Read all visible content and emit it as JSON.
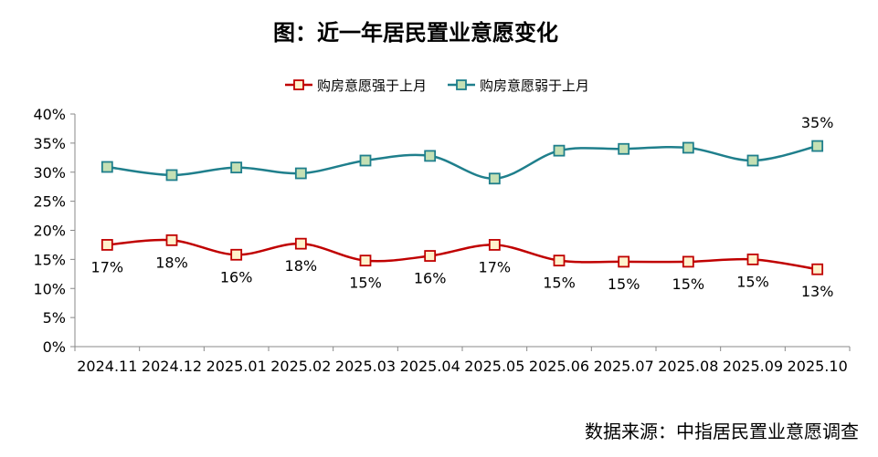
{
  "chart_data": {
    "type": "line",
    "title": "图：近一年居民置业意愿变化",
    "categories": [
      "2024.11",
      "2024.12",
      "2025.01",
      "2025.02",
      "2025.03",
      "2025.04",
      "2025.05",
      "2025.06",
      "2025.07",
      "2025.08",
      "2025.09",
      "2025.10"
    ],
    "yticks": [
      "0%",
      "5%",
      "10%",
      "15%",
      "20%",
      "25%",
      "30%",
      "35%",
      "40%"
    ],
    "ylim": [
      0,
      40
    ],
    "grid": false,
    "legend": "top",
    "series": [
      {
        "name": "购房意愿强于上月",
        "color": "#c00000",
        "marker_fill": "#fff2cc",
        "values": [
          17.5,
          18.3,
          15.8,
          17.7,
          14.8,
          15.6,
          17.5,
          14.8,
          14.6,
          14.6,
          15.0,
          13.3
        ],
        "labels": [
          "17%",
          "18%",
          "16%",
          "18%",
          "15%",
          "16%",
          "17%",
          "15%",
          "15%",
          "15%",
          "15%",
          "13%"
        ]
      },
      {
        "name": "购房意愿弱于上月",
        "color": "#1f7f8c",
        "marker_fill": "#c5e0b4",
        "values": [
          30.9,
          29.5,
          30.8,
          29.8,
          32.0,
          32.8,
          28.9,
          33.7,
          34.0,
          34.2,
          32.0,
          34.5
        ],
        "labels": [
          "",
          "",
          "",
          "",
          "",
          "",
          "",
          "",
          "",
          "",
          "",
          "35%"
        ]
      }
    ],
    "source": "数据来源：中指居民置业意愿调查"
  }
}
